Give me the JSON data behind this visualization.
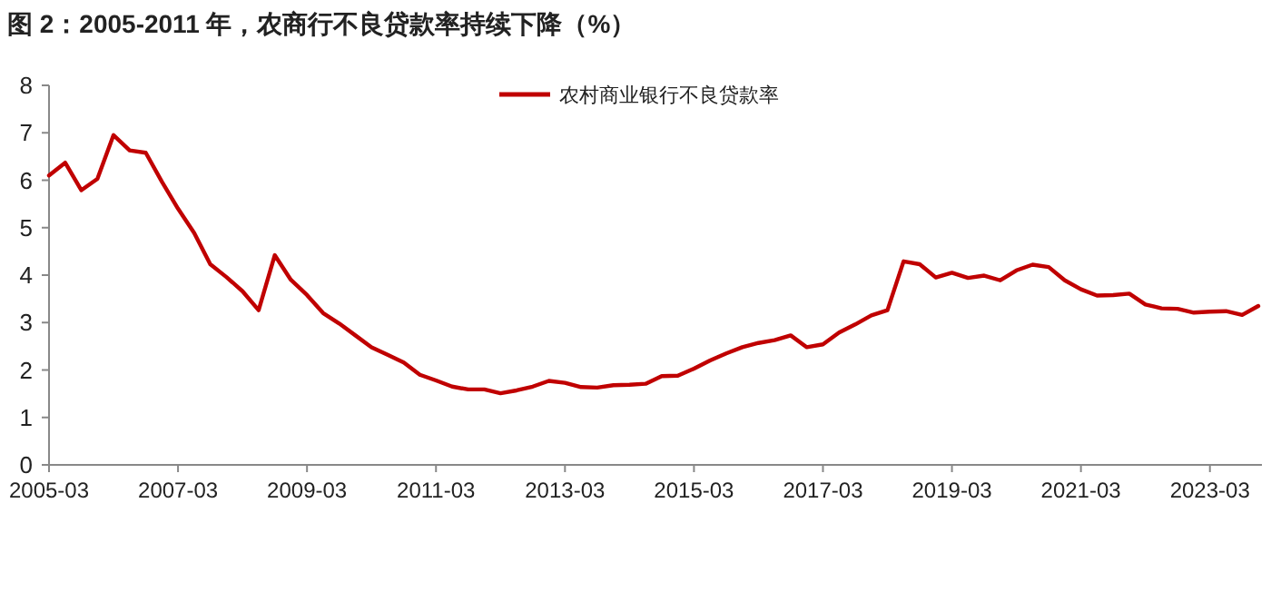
{
  "chart_data": {
    "type": "line",
    "title": "图 2：2005-2011 年，农商行不良贷款率持续下降（%）",
    "categories": [
      "2005-03",
      null,
      null,
      null,
      null,
      null,
      null,
      null,
      "2007-03",
      null,
      null,
      null,
      null,
      null,
      null,
      null,
      "2009-03",
      null,
      null,
      null,
      null,
      null,
      null,
      null,
      "2011-03",
      null,
      null,
      null,
      null,
      null,
      null,
      null,
      "2013-03",
      null,
      null,
      null,
      null,
      null,
      null,
      null,
      "2015-03",
      null,
      null,
      null,
      null,
      null,
      null,
      null,
      "2017-03",
      null,
      null,
      null,
      null,
      null,
      null,
      null,
      "2019-03",
      null,
      null,
      null,
      null,
      null,
      null,
      null,
      "2021-03",
      null,
      null,
      null,
      null,
      null,
      null,
      null,
      "2023-03",
      null,
      null,
      null
    ],
    "series": [
      {
        "name": "农村商业银行不良贷款率",
        "color": "#c00000",
        "values": [
          6.1,
          6.37,
          5.79,
          6.03,
          6.95,
          6.63,
          6.58,
          5.97,
          5.4,
          4.89,
          4.23,
          3.96,
          3.66,
          3.26,
          4.42,
          3.9,
          3.58,
          3.2,
          2.98,
          2.73,
          2.48,
          2.32,
          2.16,
          1.9,
          1.78,
          1.65,
          1.59,
          1.59,
          1.51,
          1.57,
          1.65,
          1.77,
          1.73,
          1.64,
          1.63,
          1.68,
          1.69,
          1.71,
          1.87,
          1.88,
          2.03,
          2.2,
          2.35,
          2.48,
          2.57,
          2.63,
          2.73,
          2.48,
          2.54,
          2.79,
          2.96,
          3.15,
          3.26,
          4.29,
          4.23,
          3.95,
          4.05,
          3.94,
          3.99,
          3.89,
          4.1,
          4.22,
          4.17,
          3.89,
          3.7,
          3.57,
          3.58,
          3.61,
          3.38,
          3.3,
          3.29,
          3.21,
          3.23,
          3.24,
          3.16,
          3.35
        ]
      }
    ],
    "ylim": [
      0,
      8
    ],
    "yticks": [
      0,
      1,
      2,
      3,
      4,
      5,
      6,
      7,
      8
    ],
    "legend": "top"
  }
}
